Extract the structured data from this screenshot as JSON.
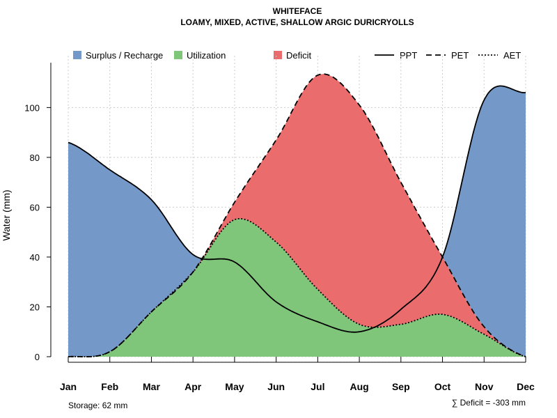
{
  "chart_data": {
    "type": "area",
    "title": "WHITEFACE",
    "subtitle": "LOAMY, MIXED, ACTIVE, SHALLOW ARGIC DURICRYOLLS",
    "xlabel": "",
    "ylabel": "Water (mm)",
    "ylim": [
      0,
      118
    ],
    "yticks": [
      0,
      20,
      40,
      60,
      80,
      100
    ],
    "grid": true,
    "categories": [
      "Jan",
      "Feb",
      "Mar",
      "Apr",
      "May",
      "Jun",
      "Jul",
      "Aug",
      "Sep",
      "Oct",
      "Nov",
      "Dec"
    ],
    "series": [
      {
        "name": "PPT",
        "line_style": "solid",
        "values": [
          86,
          75,
          63,
          41,
          38,
          22,
          14,
          10,
          19,
          40,
          103,
          106
        ]
      },
      {
        "name": "PET",
        "line_style": "dashed",
        "values": [
          0,
          2,
          18,
          34,
          62,
          87,
          113,
          101,
          70,
          40,
          12,
          0
        ]
      },
      {
        "name": "AET",
        "line_style": "dotted",
        "values": [
          0,
          2,
          18,
          34,
          55,
          46,
          27,
          13,
          13,
          17,
          9,
          0
        ]
      }
    ],
    "legend": {
      "placement": "top",
      "areas": [
        {
          "name": "Surplus / Recharge",
          "color": "#7499C8"
        },
        {
          "name": "Utilization",
          "color": "#7FC57A"
        },
        {
          "name": "Deficit",
          "color": "#EA6C6D"
        }
      ],
      "lines": [
        "PPT",
        "PET",
        "AET"
      ]
    },
    "annotations": {
      "storage": "Storage: 62 mm",
      "deficit": "∑ Deficit = -303 mm"
    }
  }
}
